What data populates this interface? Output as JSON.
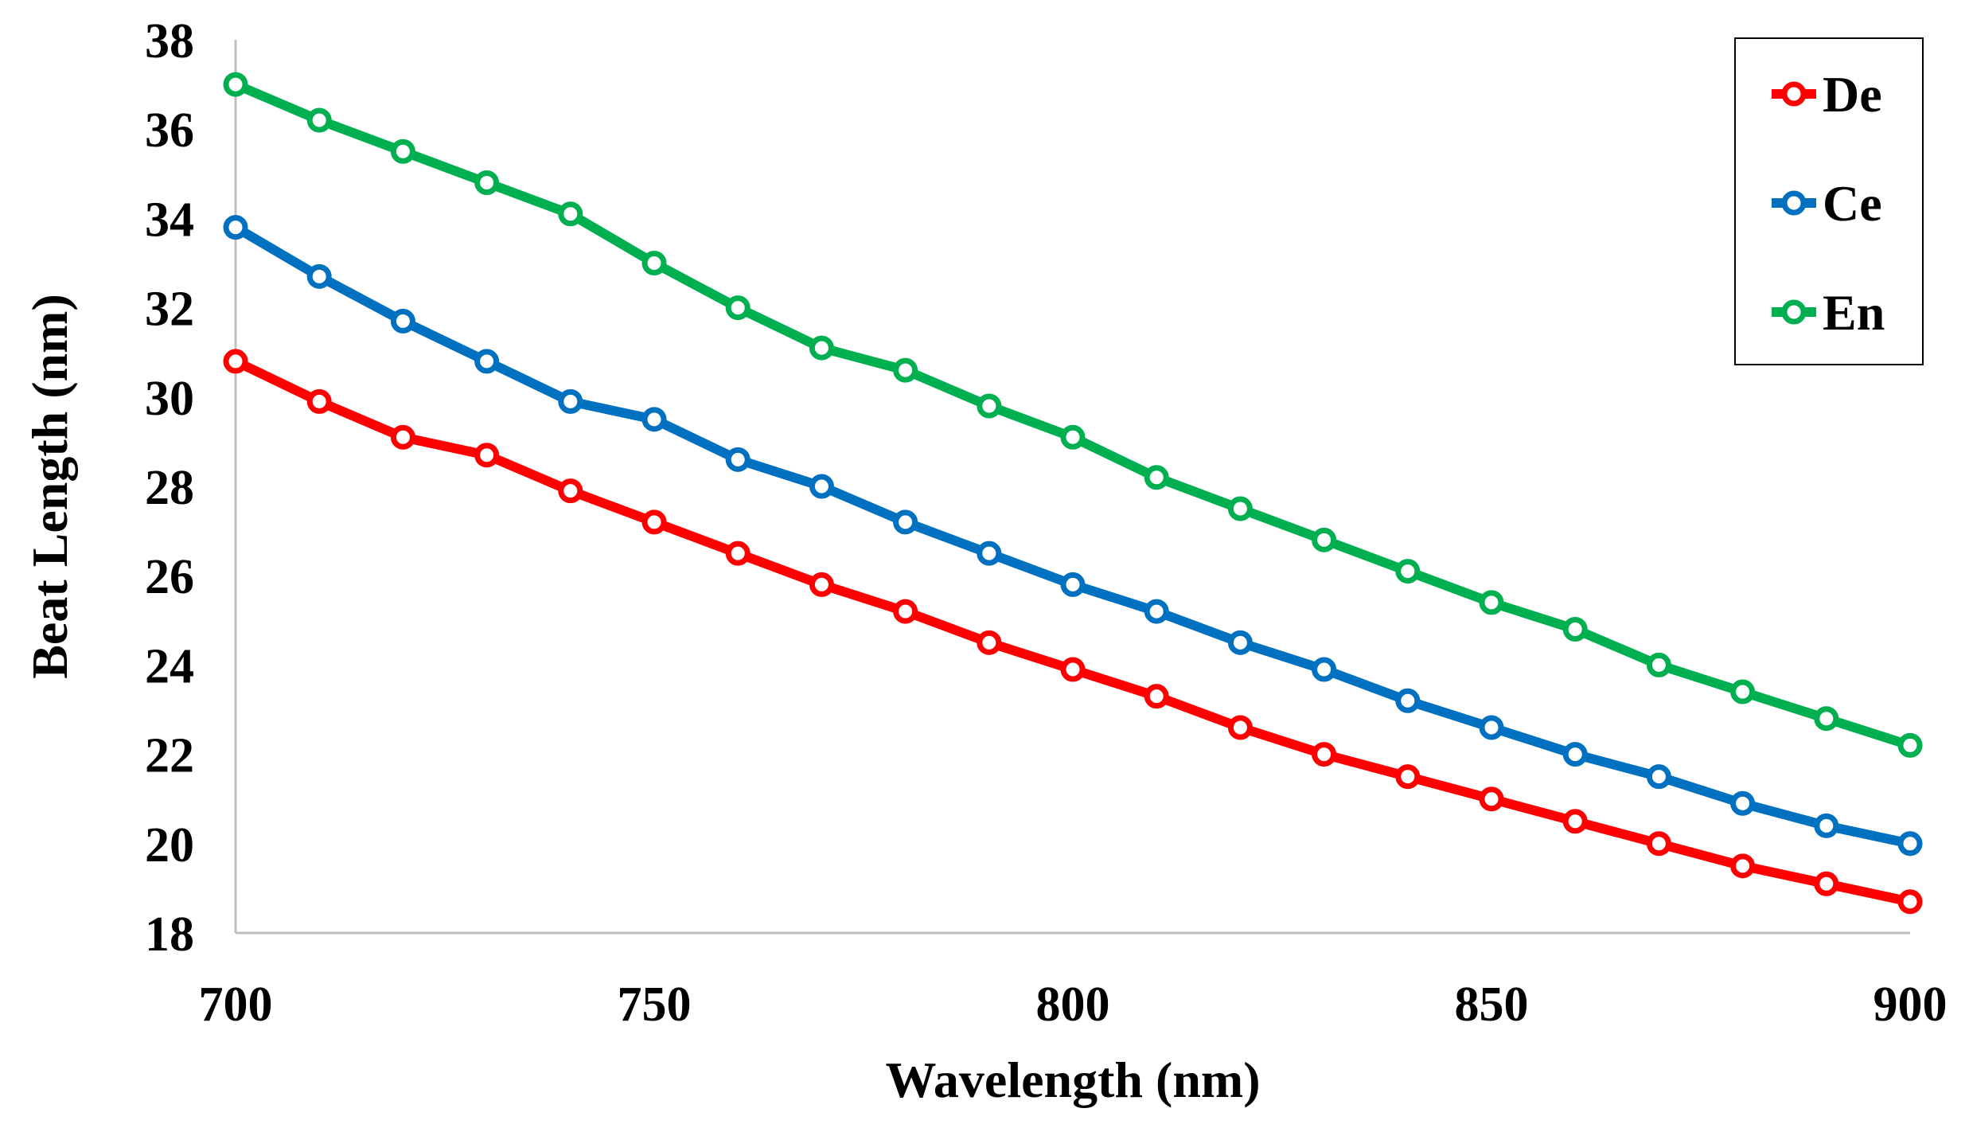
{
  "chart_data": {
    "type": "line",
    "title": "",
    "xlabel": "Wavelength (nm)",
    "ylabel": "Beat Length (nm)",
    "xlim": [
      700,
      900
    ],
    "ylim": [
      18,
      38
    ],
    "xticks": [
      700,
      750,
      800,
      850,
      900
    ],
    "yticks": [
      18,
      20,
      22,
      24,
      26,
      28,
      30,
      32,
      34,
      36,
      38
    ],
    "grid": false,
    "legend_position": "top-right",
    "x": [
      700,
      710,
      720,
      730,
      740,
      750,
      760,
      770,
      780,
      790,
      800,
      810,
      820,
      830,
      840,
      850,
      860,
      870,
      880,
      890,
      900
    ],
    "series": [
      {
        "name": "De",
        "color": "#ff0000",
        "values": [
          30.8,
          29.9,
          29.1,
          28.7,
          27.9,
          27.2,
          26.5,
          25.8,
          25.2,
          24.5,
          23.9,
          23.3,
          22.6,
          22.0,
          21.5,
          21.0,
          20.5,
          20.0,
          19.5,
          19.1,
          18.7
        ]
      },
      {
        "name": "Ce",
        "color": "#0070c0",
        "values": [
          33.8,
          32.7,
          31.7,
          30.8,
          29.9,
          29.5,
          28.6,
          28.0,
          27.2,
          26.5,
          25.8,
          25.2,
          24.5,
          23.9,
          23.2,
          22.6,
          22.0,
          21.5,
          20.9,
          20.4,
          20.0
        ]
      },
      {
        "name": "En",
        "color": "#00b050",
        "values": [
          37.0,
          36.2,
          35.5,
          34.8,
          34.1,
          33.0,
          32.0,
          31.1,
          30.6,
          29.8,
          29.1,
          28.2,
          27.5,
          26.8,
          26.1,
          25.4,
          24.8,
          24.0,
          23.4,
          22.8,
          22.2
        ]
      }
    ]
  }
}
